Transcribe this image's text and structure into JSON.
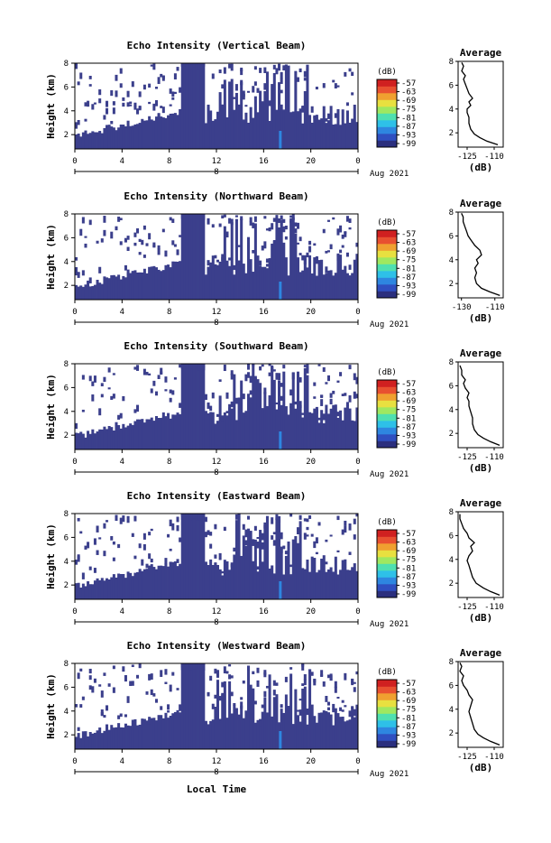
{
  "colors": {
    "echo_fill": "#3b3f8c",
    "colorbar": [
      "#2b2f7e",
      "#2f4fc0",
      "#2e86e0",
      "#2ec0e8",
      "#4fe0b0",
      "#9fe860",
      "#e8e040",
      "#f0a030",
      "#e85030",
      "#d02020"
    ]
  },
  "chart_data": [
    {
      "type": "heatmap",
      "title": "Echo Intensity (Vertical Beam)",
      "ylabel": "Height (km)",
      "yticks": [
        "2",
        "4",
        "6",
        "8"
      ],
      "ylim": [
        0.8,
        8
      ],
      "xticks": [
        "0",
        "4",
        "8",
        "12",
        "16",
        "20",
        "0"
      ],
      "xlim": [
        0,
        24
      ],
      "date_marker": "8",
      "date_label": "Aug 2021",
      "colorbar": {
        "label": "(dB)",
        "ticks": [
          "-57",
          "-63",
          "-69",
          "-75",
          "-81",
          "-87",
          "-93",
          "-99"
        ]
      },
      "average": {
        "title": "Average",
        "xlabel": "(dB)",
        "xticks": [
          "-125",
          "-110"
        ],
        "xlim": [
          -130,
          -105
        ],
        "yticks": [
          "2",
          "4",
          "6",
          "8"
        ],
        "ylim": [
          0.8,
          8
        ],
        "profile": [
          [
            -108,
            1.0
          ],
          [
            -114,
            1.3
          ],
          [
            -118,
            1.6
          ],
          [
            -121,
            1.9
          ],
          [
            -123,
            2.3
          ],
          [
            -124,
            2.8
          ],
          [
            -124,
            3.3
          ],
          [
            -125,
            3.7
          ],
          [
            -125,
            4.0
          ],
          [
            -123,
            4.3
          ],
          [
            -124,
            4.6
          ],
          [
            -122,
            4.9
          ],
          [
            -124,
            5.3
          ],
          [
            -125,
            5.7
          ],
          [
            -126,
            6.1
          ],
          [
            -127,
            6.5
          ],
          [
            -126,
            6.8
          ],
          [
            -128,
            7.2
          ],
          [
            -127,
            7.6
          ],
          [
            -128,
            7.9
          ]
        ]
      }
    },
    {
      "type": "heatmap",
      "title": "Echo Intensity (Northward Beam)",
      "ylabel": "Height (km)",
      "yticks": [
        "2",
        "4",
        "6",
        "8"
      ],
      "ylim": [
        0.8,
        8
      ],
      "xticks": [
        "0",
        "4",
        "8",
        "12",
        "16",
        "20",
        "0"
      ],
      "xlim": [
        0,
        24
      ],
      "date_marker": "8",
      "date_label": "Aug 2021",
      "colorbar": {
        "label": "(dB)",
        "ticks": [
          "-57",
          "-63",
          "-69",
          "-75",
          "-81",
          "-87",
          "-93",
          "-99"
        ]
      },
      "average": {
        "title": "Average",
        "xlabel": "(dB)",
        "xticks": [
          "-130",
          "-110"
        ],
        "xlim": [
          -132,
          -105
        ],
        "yticks": [
          "2",
          "4",
          "6",
          "8"
        ],
        "ylim": [
          0.8,
          8
        ],
        "profile": [
          [
            -107,
            1.0
          ],
          [
            -113,
            1.3
          ],
          [
            -118,
            1.6
          ],
          [
            -121,
            2.0
          ],
          [
            -122,
            2.5
          ],
          [
            -121,
            2.9
          ],
          [
            -122,
            3.3
          ],
          [
            -120,
            3.7
          ],
          [
            -121,
            4.0
          ],
          [
            -118,
            4.4
          ],
          [
            -119,
            4.8
          ],
          [
            -122,
            5.2
          ],
          [
            -124,
            5.6
          ],
          [
            -126,
            6.0
          ],
          [
            -127,
            6.4
          ],
          [
            -128,
            6.8
          ],
          [
            -129,
            7.2
          ],
          [
            -129,
            7.6
          ],
          [
            -130,
            7.9
          ]
        ]
      }
    },
    {
      "type": "heatmap",
      "title": "Echo Intensity (Southward Beam)",
      "ylabel": "Height (km)",
      "yticks": [
        "2",
        "4",
        "6",
        "8"
      ],
      "ylim": [
        0.8,
        8
      ],
      "xticks": [
        "0",
        "4",
        "8",
        "12",
        "16",
        "20",
        "0"
      ],
      "xlim": [
        0,
        24
      ],
      "date_marker": "8",
      "date_label": "Aug 2021",
      "colorbar": {
        "label": "(dB)",
        "ticks": [
          "-57",
          "-63",
          "-69",
          "-75",
          "-81",
          "-87",
          "-93",
          "-99"
        ]
      },
      "average": {
        "title": "Average",
        "xlabel": "(dB)",
        "xticks": [
          "-125",
          "-110"
        ],
        "xlim": [
          -130,
          -105
        ],
        "yticks": [
          "2",
          "4",
          "6",
          "8"
        ],
        "ylim": [
          0.8,
          8
        ],
        "profile": [
          [
            -107,
            1.0
          ],
          [
            -112,
            1.3
          ],
          [
            -116,
            1.6
          ],
          [
            -119,
            1.9
          ],
          [
            -121,
            2.3
          ],
          [
            -122,
            2.8
          ],
          [
            -122,
            3.3
          ],
          [
            -123,
            3.8
          ],
          [
            -124,
            4.3
          ],
          [
            -124,
            4.7
          ],
          [
            -125,
            5.0
          ],
          [
            -124,
            5.4
          ],
          [
            -126,
            5.8
          ],
          [
            -127,
            6.2
          ],
          [
            -126,
            6.5
          ],
          [
            -128,
            6.9
          ],
          [
            -128,
            7.3
          ],
          [
            -129,
            7.7
          ]
        ]
      }
    },
    {
      "type": "heatmap",
      "title": "Echo Intensity (Eastward Beam)",
      "ylabel": "Height (km)",
      "yticks": [
        "2",
        "4",
        "6",
        "8"
      ],
      "ylim": [
        0.8,
        8
      ],
      "xticks": [
        "0",
        "4",
        "8",
        "12",
        "16",
        "20",
        "0"
      ],
      "xlim": [
        0,
        24
      ],
      "date_marker": "8",
      "date_label": "Aug 2021",
      "colorbar": {
        "label": "(dB)",
        "ticks": [
          "-57",
          "-63",
          "-69",
          "-75",
          "-81",
          "-87",
          "-93",
          "-99"
        ]
      },
      "average": {
        "title": "Average",
        "xlabel": "(dB)",
        "xticks": [
          "-125",
          "-110"
        ],
        "xlim": [
          -130,
          -105
        ],
        "yticks": [
          "2",
          "4",
          "6",
          "8"
        ],
        "ylim": [
          0.8,
          8
        ],
        "profile": [
          [
            -107,
            1.0
          ],
          [
            -112,
            1.3
          ],
          [
            -116,
            1.6
          ],
          [
            -120,
            2.0
          ],
          [
            -122,
            2.5
          ],
          [
            -123,
            3.0
          ],
          [
            -124,
            3.5
          ],
          [
            -125,
            3.9
          ],
          [
            -124,
            4.3
          ],
          [
            -122,
            4.7
          ],
          [
            -123,
            5.1
          ],
          [
            -121,
            5.4
          ],
          [
            -124,
            5.8
          ],
          [
            -125,
            6.2
          ],
          [
            -127,
            6.6
          ],
          [
            -128,
            7.0
          ],
          [
            -129,
            7.4
          ],
          [
            -129,
            7.8
          ]
        ]
      }
    },
    {
      "type": "heatmap",
      "title": "Echo Intensity (Westward Beam)",
      "ylabel": "Height (km)",
      "yticks": [
        "2",
        "4",
        "6",
        "8"
      ],
      "ylim": [
        0.8,
        8
      ],
      "xticks": [
        "0",
        "4",
        "8",
        "12",
        "16",
        "20",
        "0"
      ],
      "xlim": [
        0,
        24
      ],
      "date_marker": "8",
      "date_label": "Aug 2021",
      "colorbar": {
        "label": "(dB)",
        "ticks": [
          "-57",
          "-63",
          "-69",
          "-75",
          "-81",
          "-87",
          "-93",
          "-99"
        ]
      },
      "average": {
        "title": "Average",
        "xlabel": "(dB)",
        "xticks": [
          "-125",
          "-110"
        ],
        "xlim": [
          -130,
          -105
        ],
        "yticks": [
          "2",
          "4",
          "6",
          "8"
        ],
        "ylim": [
          0.8,
          8
        ],
        "profile": [
          [
            -107,
            1.0
          ],
          [
            -112,
            1.3
          ],
          [
            -116,
            1.6
          ],
          [
            -119,
            1.9
          ],
          [
            -121,
            2.3
          ],
          [
            -122,
            2.8
          ],
          [
            -123,
            3.3
          ],
          [
            -124,
            3.8
          ],
          [
            -123,
            4.3
          ],
          [
            -122,
            4.8
          ],
          [
            -124,
            5.2
          ],
          [
            -125,
            5.6
          ],
          [
            -127,
            6.0
          ],
          [
            -128,
            6.4
          ],
          [
            -127,
            6.8
          ],
          [
            -129,
            7.2
          ],
          [
            -128,
            7.6
          ],
          [
            -129,
            7.9
          ]
        ]
      }
    }
  ],
  "xlabel": "Local Time"
}
